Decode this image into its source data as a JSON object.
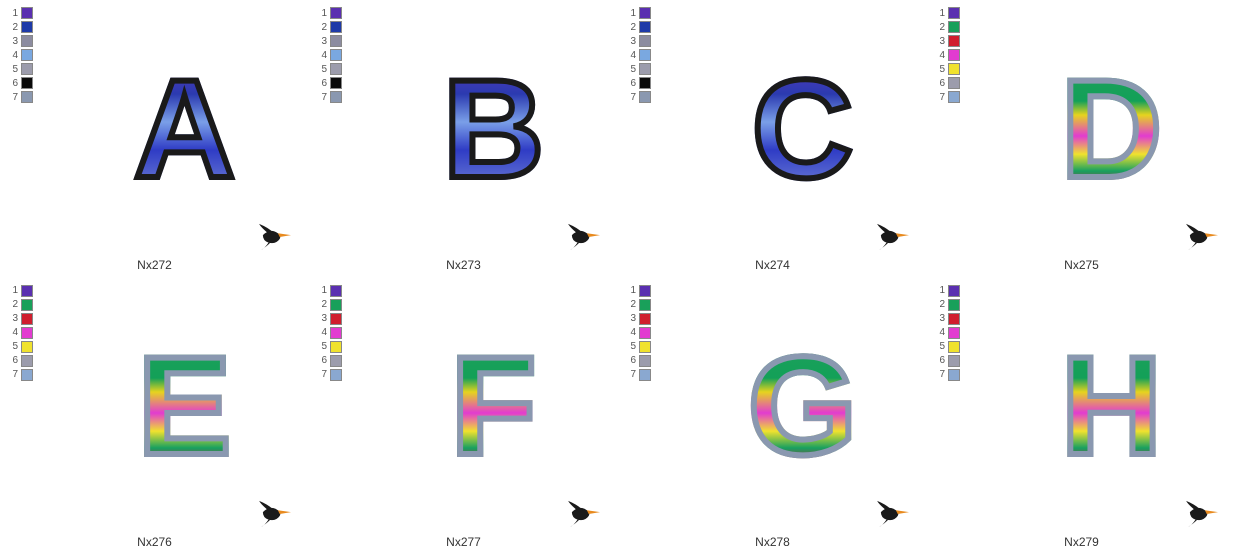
{
  "grid": {
    "cols": 4,
    "rows": 2
  },
  "palettes": {
    "blue": [
      {
        "n": "1",
        "hex": "#5a2fb0"
      },
      {
        "n": "2",
        "hex": "#1e3aa8"
      },
      {
        "n": "3",
        "hex": "#8c8ca0"
      },
      {
        "n": "4",
        "hex": "#7aa8e0"
      },
      {
        "n": "5",
        "hex": "#9c9cac"
      },
      {
        "n": "6",
        "hex": "#0a0a0a"
      },
      {
        "n": "7",
        "hex": "#8a98b0"
      }
    ],
    "rainbow": [
      {
        "n": "1",
        "hex": "#5a2fb0"
      },
      {
        "n": "2",
        "hex": "#19a05a"
      },
      {
        "n": "3",
        "hex": "#d01e2e"
      },
      {
        "n": "4",
        "hex": "#e23bd0"
      },
      {
        "n": "5",
        "hex": "#f0e22e"
      },
      {
        "n": "6",
        "hex": "#9c9cac"
      },
      {
        "n": "7",
        "hex": "#8aa8d0"
      }
    ]
  },
  "bird_colors": {
    "body": "#1a1a1a",
    "beak": "#e88a1e",
    "wing": "#1a1a1a"
  },
  "items": [
    {
      "letter": "A",
      "style": "blue",
      "caption": "Nx272",
      "palette": "blue"
    },
    {
      "letter": "B",
      "style": "blue",
      "caption": "Nx273",
      "palette": "blue"
    },
    {
      "letter": "C",
      "style": "blue",
      "caption": "Nx274",
      "palette": "blue"
    },
    {
      "letter": "D",
      "style": "rainbow",
      "caption": "Nx275",
      "palette": "rainbow"
    },
    {
      "letter": "E",
      "style": "rainbow",
      "caption": "Nx276",
      "palette": "rainbow"
    },
    {
      "letter": "F",
      "style": "rainbow",
      "caption": "Nx277",
      "palette": "rainbow"
    },
    {
      "letter": "G",
      "style": "rainbow",
      "caption": "Nx278",
      "palette": "rainbow"
    },
    {
      "letter": "H",
      "style": "rainbow",
      "caption": "Nx279",
      "palette": "rainbow"
    }
  ]
}
